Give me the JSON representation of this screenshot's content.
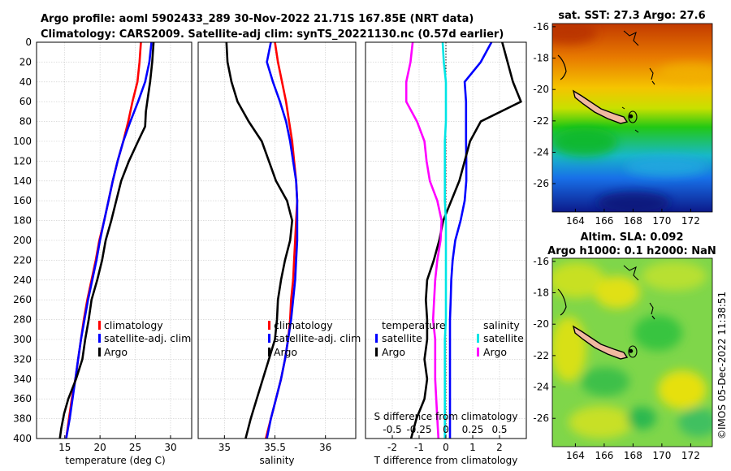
{
  "header": {
    "line1": "Argo profile: aoml 5902433_289 30-Nov-2022 21.71S 167.85E (NRT data)",
    "line2": "Climatology: CARS2009. Satellite-adj clim: synTS_20221130.nc (0.57d earlier)"
  },
  "colors": {
    "climatology": "#ff0000",
    "satellite": "#0000ff",
    "argo": "#000000",
    "sal_satellite": "#00e5e5",
    "sal_argo": "#ff00ff"
  },
  "chart_data": [
    {
      "id": "temperature",
      "type": "line",
      "xlabel": "temperature (deg C)",
      "ylabel": "",
      "xlim": [
        11,
        33
      ],
      "ylim": [
        400,
        0
      ],
      "xticks": [
        "15",
        "20",
        "25",
        "30"
      ],
      "yticks": [
        "0",
        "20",
        "40",
        "60",
        "80",
        "100",
        "120",
        "140",
        "160",
        "180",
        "200",
        "220",
        "240",
        "260",
        "280",
        "300",
        "320",
        "340",
        "360",
        "380",
        "400"
      ],
      "legend": [
        "climatology",
        "satellite-adj. clim",
        "Argo"
      ],
      "series": [
        {
          "name": "climatology",
          "color": "#ff0000",
          "x": [
            25.8,
            25.6,
            25.3,
            24.6,
            24.0,
            23.3,
            22.5,
            21.8,
            21.2,
            20.6,
            19.9,
            19.4,
            18.8,
            18.2,
            17.7,
            17.3,
            16.9,
            16.5,
            16.0,
            15.6,
            15.2
          ],
          "y": [
            0,
            20,
            40,
            60,
            80,
            100,
            120,
            140,
            160,
            180,
            200,
            220,
            240,
            260,
            280,
            300,
            320,
            340,
            360,
            380,
            400
          ]
        },
        {
          "name": "satellite-adj. clim",
          "color": "#0000ff",
          "x": [
            27.3,
            27.0,
            26.4,
            25.4,
            24.3,
            23.3,
            22.5,
            21.8,
            21.2,
            20.6,
            20.0,
            19.5,
            18.9,
            18.3,
            17.8,
            17.3,
            16.9,
            16.5,
            16.1,
            15.7,
            15.2
          ],
          "y": [
            0,
            20,
            40,
            60,
            80,
            100,
            120,
            140,
            160,
            180,
            200,
            220,
            240,
            260,
            280,
            300,
            320,
            340,
            360,
            380,
            400
          ]
        },
        {
          "name": "Argo",
          "color": "#000000",
          "x": [
            27.6,
            27.4,
            27.1,
            26.7,
            26.5,
            26.4,
            25.4,
            24.1,
            23.0,
            22.3,
            21.6,
            20.8,
            20.3,
            19.6,
            18.8,
            18.4,
            17.9,
            17.5,
            16.6,
            15.5,
            14.9,
            14.5,
            14.3
          ],
          "y": [
            0,
            20,
            40,
            60,
            70,
            85,
            100,
            120,
            140,
            160,
            180,
            200,
            220,
            240,
            260,
            280,
            300,
            320,
            340,
            360,
            375,
            390,
            400
          ]
        }
      ]
    },
    {
      "id": "salinity",
      "type": "line",
      "xlabel": "salinity",
      "ylabel": "",
      "xlim": [
        34.74,
        36.3
      ],
      "ylim": [
        400,
        0
      ],
      "xticks": [
        "35",
        "35.5",
        "36"
      ],
      "yticks": [],
      "legend": [
        "climatology",
        "satellite-adj. clim",
        "Argo"
      ],
      "series": [
        {
          "name": "climatology",
          "color": "#ff0000",
          "x": [
            35.5,
            35.53,
            35.57,
            35.61,
            35.64,
            35.67,
            35.69,
            35.71,
            35.72,
            35.71,
            35.7,
            35.69,
            35.68,
            35.66,
            35.65,
            35.63,
            35.6,
            35.56,
            35.51,
            35.46,
            35.41
          ],
          "y": [
            0,
            20,
            40,
            60,
            80,
            100,
            120,
            140,
            160,
            180,
            200,
            220,
            240,
            260,
            280,
            300,
            320,
            340,
            360,
            380,
            400
          ]
        },
        {
          "name": "satellite-adj. clim",
          "color": "#0000ff",
          "x": [
            35.46,
            35.42,
            35.48,
            35.55,
            35.61,
            35.65,
            35.68,
            35.71,
            35.72,
            35.72,
            35.72,
            35.71,
            35.7,
            35.68,
            35.66,
            35.63,
            35.6,
            35.56,
            35.51,
            35.46,
            35.42
          ],
          "y": [
            0,
            20,
            40,
            60,
            80,
            100,
            120,
            140,
            160,
            180,
            200,
            220,
            240,
            260,
            280,
            300,
            320,
            340,
            360,
            380,
            400
          ]
        },
        {
          "name": "Argo",
          "color": "#000000",
          "x": [
            35.02,
            35.03,
            35.07,
            35.13,
            35.24,
            35.37,
            35.44,
            35.51,
            35.62,
            35.67,
            35.65,
            35.6,
            35.56,
            35.53,
            35.52,
            35.5,
            35.44,
            35.38,
            35.32,
            35.26,
            35.21
          ],
          "y": [
            0,
            20,
            40,
            60,
            80,
            100,
            120,
            140,
            160,
            180,
            200,
            220,
            240,
            260,
            280,
            300,
            320,
            340,
            360,
            380,
            400
          ]
        }
      ]
    },
    {
      "id": "difference",
      "type": "line",
      "xlabel": "T difference from climatology",
      "xlabel2": "S difference from climatology",
      "xlim": [
        -3,
        3
      ],
      "ylim": [
        400,
        0
      ],
      "xticks": [
        "-2",
        "-1",
        "0",
        "1",
        "2"
      ],
      "xticks2": [
        "-0.5",
        "-0.25",
        "0",
        "0.25",
        "0.5"
      ],
      "legend_titles": [
        "temperature",
        "salinity"
      ],
      "legend": [
        "satellite",
        "Argo",
        "satellite",
        "Argo"
      ],
      "series": [
        {
          "name": "T satellite",
          "color": "#0000ff",
          "x": [
            1.7,
            1.3,
            0.7,
            0.75,
            0.75,
            0.75,
            0.76,
            0.76,
            0.7,
            0.55,
            0.35,
            0.25,
            0.2,
            0.18,
            0.15,
            0.15,
            0.15,
            0.15,
            0.15,
            0.15,
            0.15
          ],
          "y": [
            0,
            20,
            40,
            60,
            80,
            100,
            120,
            140,
            160,
            180,
            200,
            220,
            240,
            260,
            280,
            300,
            320,
            340,
            360,
            380,
            400
          ]
        },
        {
          "name": "T Argo",
          "color": "#000000",
          "x": [
            2.1,
            2.3,
            2.5,
            2.8,
            1.3,
            0.9,
            0.7,
            0.5,
            0.2,
            -0.1,
            -0.25,
            -0.45,
            -0.7,
            -0.75,
            -0.7,
            -0.7,
            -0.8,
            -0.7,
            -0.8,
            -1.1,
            -1.3
          ],
          "y": [
            0,
            20,
            40,
            60,
            80,
            100,
            120,
            140,
            160,
            180,
            200,
            220,
            240,
            260,
            280,
            300,
            320,
            340,
            360,
            380,
            400
          ]
        },
        {
          "name": "S satellite",
          "color": "#00e5e5",
          "x": [
            -0.03,
            -0.02,
            0.0,
            0.0,
            0.0,
            -0.01,
            -0.01,
            -0.01,
            -0.01,
            0.0,
            0.0,
            0.0,
            0.0,
            0.0,
            0.0,
            -0.01,
            -0.01,
            -0.01,
            -0.01,
            -0.01,
            -0.01
          ],
          "y": [
            0,
            20,
            40,
            60,
            80,
            100,
            120,
            140,
            160,
            180,
            200,
            220,
            240,
            260,
            280,
            300,
            320,
            340,
            360,
            380,
            400
          ]
        },
        {
          "name": "S Argo",
          "color": "#ff00ff",
          "x": [
            -0.31,
            -0.33,
            -0.37,
            -0.37,
            -0.27,
            -0.2,
            -0.18,
            -0.15,
            -0.08,
            -0.04,
            -0.05,
            -0.08,
            -0.1,
            -0.11,
            -0.12,
            -0.1,
            -0.1,
            -0.1,
            -0.09,
            -0.08,
            -0.07
          ],
          "y": [
            0,
            20,
            40,
            60,
            80,
            100,
            120,
            140,
            160,
            180,
            200,
            220,
            240,
            260,
            280,
            300,
            320,
            340,
            360,
            380,
            400
          ]
        }
      ]
    },
    {
      "id": "sst_map",
      "type": "heatmap",
      "title": "sat. SST: 27.3 Argo: 27.6",
      "xticks": [
        "164",
        "166",
        "168",
        "170",
        "172"
      ],
      "yticks": [
        "-16",
        "-18",
        "-20",
        "-22",
        "-24",
        "-26"
      ],
      "xlim": [
        162.4,
        173.5
      ],
      "ylim": [
        -27.8,
        -15.8
      ],
      "float_position": {
        "lon": 167.85,
        "lat": -21.71
      }
    },
    {
      "id": "sla_map",
      "type": "heatmap",
      "title_line1": "Altim. SLA: 0.092",
      "title_line2": "Argo h1000: 0.1 h2000: NaN",
      "xticks": [
        "164",
        "166",
        "168",
        "170",
        "172"
      ],
      "yticks": [
        "-16",
        "-18",
        "-20",
        "-22",
        "-24",
        "-26"
      ],
      "xlim": [
        162.4,
        173.5
      ],
      "ylim": [
        -27.8,
        -15.8
      ],
      "float_position": {
        "lon": 167.85,
        "lat": -21.71
      }
    }
  ],
  "footer": {
    "stamp": "©IMOS 05-Dec-2022 11:38:51"
  }
}
